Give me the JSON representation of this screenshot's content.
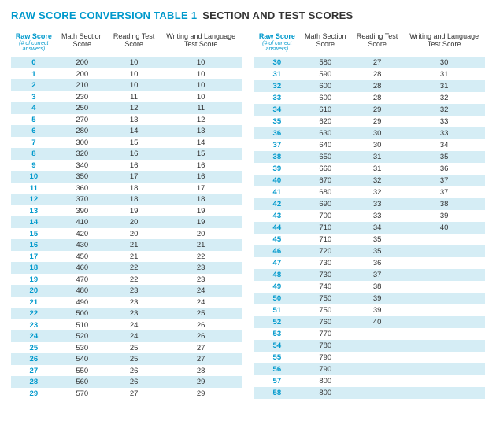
{
  "title_part1": "RAW SCORE CONVERSION TABLE 1",
  "title_part2": "SECTION AND TEST SCORES",
  "headers": {
    "raw": "Raw Score",
    "raw_sub": "(# of correct answers)",
    "math": "Math Section Score",
    "reading": "Reading Test Score",
    "writing": "Writing and Language Test Score",
    "reading2": "Reading Test Score"
  },
  "left_rows": [
    {
      "raw": "0",
      "math": "200",
      "reading": "10",
      "writing": "10"
    },
    {
      "raw": "1",
      "math": "200",
      "reading": "10",
      "writing": "10"
    },
    {
      "raw": "2",
      "math": "210",
      "reading": "10",
      "writing": "10"
    },
    {
      "raw": "3",
      "math": "230",
      "reading": "11",
      "writing": "10"
    },
    {
      "raw": "4",
      "math": "250",
      "reading": "12",
      "writing": "11"
    },
    {
      "raw": "5",
      "math": "270",
      "reading": "13",
      "writing": "12"
    },
    {
      "raw": "6",
      "math": "280",
      "reading": "14",
      "writing": "13"
    },
    {
      "raw": "7",
      "math": "300",
      "reading": "15",
      "writing": "14"
    },
    {
      "raw": "8",
      "math": "320",
      "reading": "16",
      "writing": "15"
    },
    {
      "raw": "9",
      "math": "340",
      "reading": "16",
      "writing": "16"
    },
    {
      "raw": "10",
      "math": "350",
      "reading": "17",
      "writing": "16"
    },
    {
      "raw": "11",
      "math": "360",
      "reading": "18",
      "writing": "17"
    },
    {
      "raw": "12",
      "math": "370",
      "reading": "18",
      "writing": "18"
    },
    {
      "raw": "13",
      "math": "390",
      "reading": "19",
      "writing": "19"
    },
    {
      "raw": "14",
      "math": "410",
      "reading": "20",
      "writing": "19"
    },
    {
      "raw": "15",
      "math": "420",
      "reading": "20",
      "writing": "20"
    },
    {
      "raw": "16",
      "math": "430",
      "reading": "21",
      "writing": "21"
    },
    {
      "raw": "17",
      "math": "450",
      "reading": "21",
      "writing": "22"
    },
    {
      "raw": "18",
      "math": "460",
      "reading": "22",
      "writing": "23"
    },
    {
      "raw": "19",
      "math": "470",
      "reading": "22",
      "writing": "23"
    },
    {
      "raw": "20",
      "math": "480",
      "reading": "23",
      "writing": "24"
    },
    {
      "raw": "21",
      "math": "490",
      "reading": "23",
      "writing": "24"
    },
    {
      "raw": "22",
      "math": "500",
      "reading": "23",
      "writing": "25"
    },
    {
      "raw": "23",
      "math": "510",
      "reading": "24",
      "writing": "26"
    },
    {
      "raw": "24",
      "math": "520",
      "reading": "24",
      "writing": "26"
    },
    {
      "raw": "25",
      "math": "530",
      "reading": "25",
      "writing": "27"
    },
    {
      "raw": "26",
      "math": "540",
      "reading": "25",
      "writing": "27"
    },
    {
      "raw": "27",
      "math": "550",
      "reading": "26",
      "writing": "28"
    },
    {
      "raw": "28",
      "math": "560",
      "reading": "26",
      "writing": "29"
    },
    {
      "raw": "29",
      "math": "570",
      "reading": "27",
      "writing": "29"
    }
  ],
  "right_rows": [
    {
      "raw": "30",
      "math": "580",
      "reading": "27",
      "writing": "30"
    },
    {
      "raw": "31",
      "math": "590",
      "reading": "28",
      "writing": "31"
    },
    {
      "raw": "32",
      "math": "600",
      "reading": "28",
      "writing": "31"
    },
    {
      "raw": "33",
      "math": "600",
      "reading": "28",
      "writing": "32"
    },
    {
      "raw": "34",
      "math": "610",
      "reading": "29",
      "writing": "32"
    },
    {
      "raw": "35",
      "math": "620",
      "reading": "29",
      "writing": "33"
    },
    {
      "raw": "36",
      "math": "630",
      "reading": "30",
      "writing": "33"
    },
    {
      "raw": "37",
      "math": "640",
      "reading": "30",
      "writing": "34"
    },
    {
      "raw": "38",
      "math": "650",
      "reading": "31",
      "writing": "35"
    },
    {
      "raw": "39",
      "math": "660",
      "reading": "31",
      "writing": "36"
    },
    {
      "raw": "40",
      "math": "670",
      "reading": "32",
      "writing": "37"
    },
    {
      "raw": "41",
      "math": "680",
      "reading": "32",
      "writing": "37"
    },
    {
      "raw": "42",
      "math": "690",
      "reading": "33",
      "writing": "38"
    },
    {
      "raw": "43",
      "math": "700",
      "reading": "33",
      "writing": "39"
    },
    {
      "raw": "44",
      "math": "710",
      "reading": "34",
      "writing": "40"
    },
    {
      "raw": "45",
      "math": "710",
      "reading": "35",
      "writing": ""
    },
    {
      "raw": "46",
      "math": "720",
      "reading": "35",
      "writing": ""
    },
    {
      "raw": "47",
      "math": "730",
      "reading": "36",
      "writing": ""
    },
    {
      "raw": "48",
      "math": "730",
      "reading": "37",
      "writing": ""
    },
    {
      "raw": "49",
      "math": "740",
      "reading": "38",
      "writing": ""
    },
    {
      "raw": "50",
      "math": "750",
      "reading": "39",
      "writing": ""
    },
    {
      "raw": "51",
      "math": "750",
      "reading": "39",
      "writing": ""
    },
    {
      "raw": "52",
      "math": "760",
      "reading": "40",
      "writing": ""
    },
    {
      "raw": "53",
      "math": "770",
      "reading": "",
      "writing": ""
    },
    {
      "raw": "54",
      "math": "780",
      "reading": "",
      "writing": ""
    },
    {
      "raw": "55",
      "math": "790",
      "reading": "",
      "writing": ""
    },
    {
      "raw": "56",
      "math": "790",
      "reading": "",
      "writing": ""
    },
    {
      "raw": "57",
      "math": "800",
      "reading": "",
      "writing": ""
    },
    {
      "raw": "58",
      "math": "800",
      "reading": "",
      "writing": ""
    }
  ]
}
